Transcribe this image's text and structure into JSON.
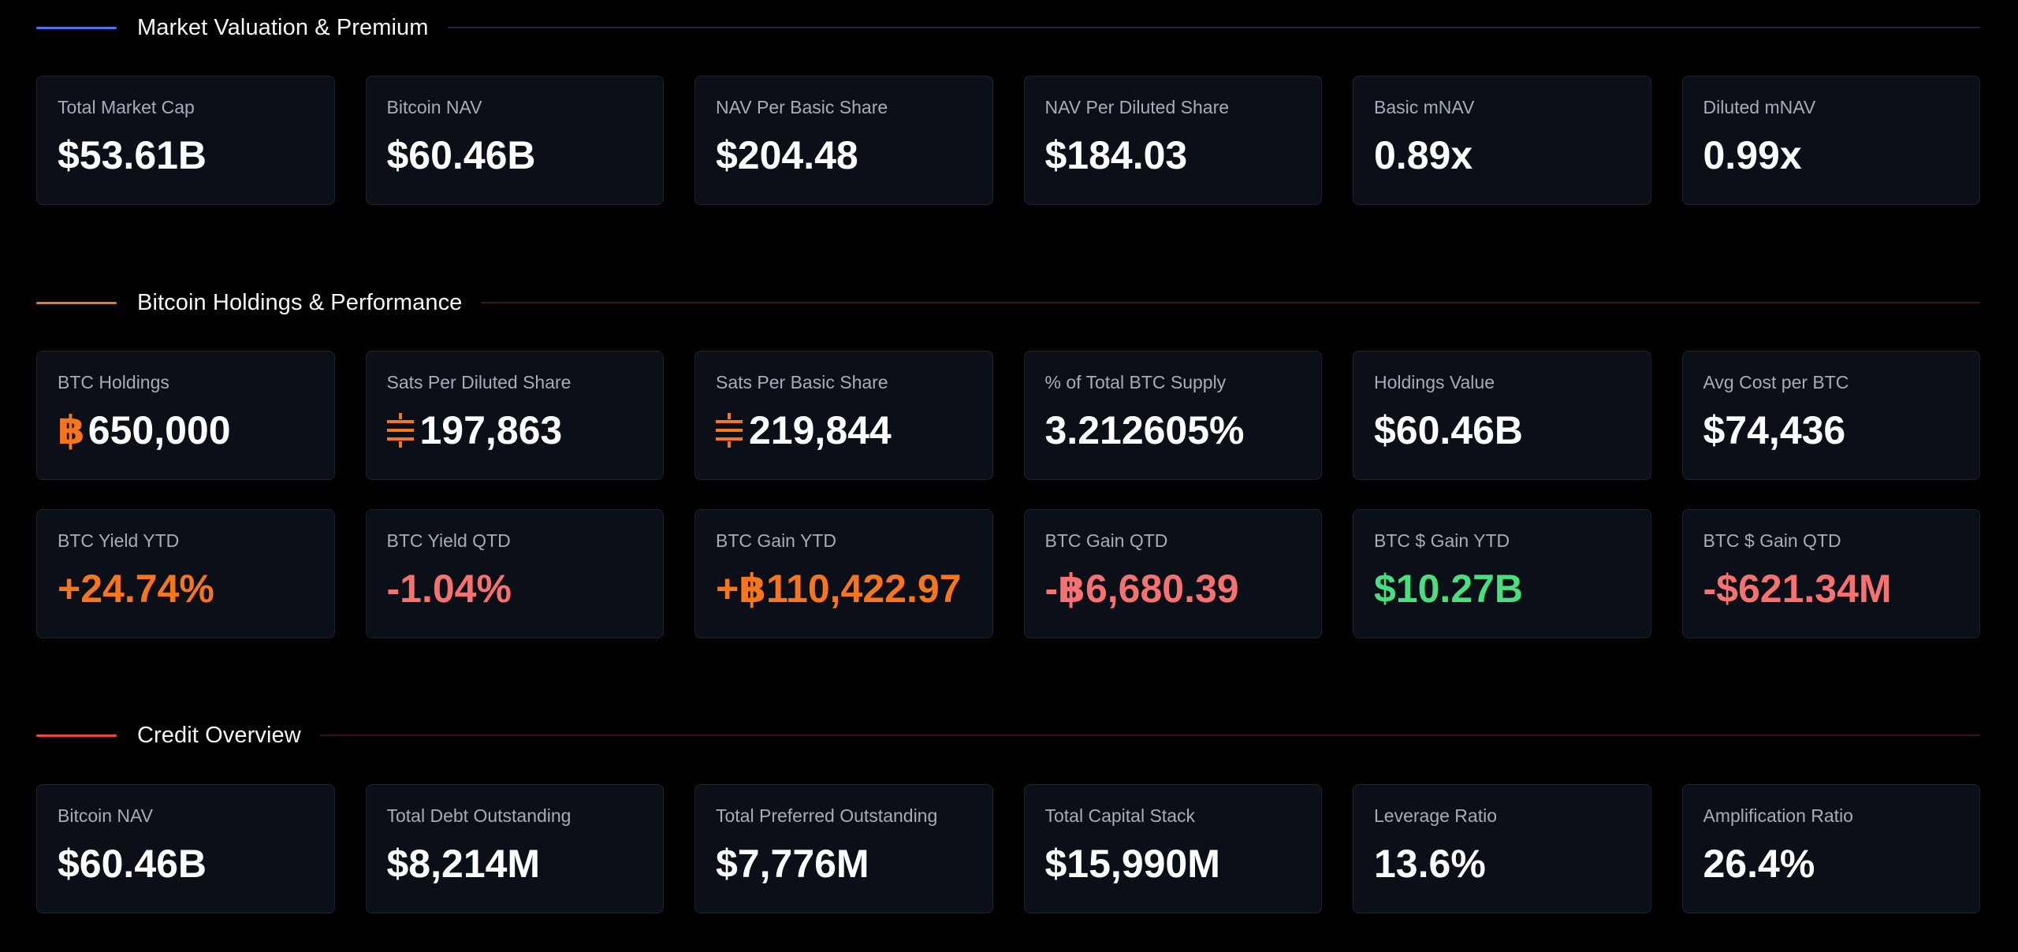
{
  "colors": {
    "valuation_accent": "#3b7cf5",
    "valuation_rule": "#17234a",
    "holdings_accent": "#f7761a",
    "holdings_rule": "#3a1d0b",
    "credit_accent": "#ef4444",
    "credit_rule": "#3a1212",
    "btc_orange": "#f7761a",
    "positive_green": "#4ade80",
    "negative_red": "#f87171"
  },
  "valuation": {
    "title": "Market Valuation & Premium",
    "cards": [
      {
        "label": "Total Market Cap",
        "value": "$53.61B"
      },
      {
        "label": "Bitcoin NAV",
        "value": "$60.46B"
      },
      {
        "label": "NAV Per Basic Share",
        "value": "$204.48"
      },
      {
        "label": "NAV Per Diluted Share",
        "value": "$184.03"
      },
      {
        "label": "Basic mNAV",
        "value": "0.89x"
      },
      {
        "label": "Diluted mNAV",
        "value": "0.99x"
      }
    ]
  },
  "holdings": {
    "title": "Bitcoin Holdings & Performance",
    "cards": [
      {
        "label": "BTC Holdings",
        "unit_icon": "bitcoin-icon",
        "unit": "฿",
        "value": "650,000"
      },
      {
        "label": "Sats Per Diluted Share",
        "unit_icon": "sats-icon",
        "value": "197,863"
      },
      {
        "label": "Sats Per Basic Share",
        "unit_icon": "sats-icon",
        "value": "219,844"
      },
      {
        "label": "% of Total BTC Supply",
        "value": "3.212605%"
      },
      {
        "label": "Holdings Value",
        "value": "$60.46B"
      },
      {
        "label": "Avg Cost per BTC",
        "value": "$74,436"
      }
    ]
  },
  "performance": {
    "cards": [
      {
        "label": "BTC Yield YTD",
        "value": "+24.74%"
      },
      {
        "label": "BTC Yield QTD",
        "value": "-1.04%"
      },
      {
        "label": "BTC Gain YTD",
        "value": "+฿110,422.97"
      },
      {
        "label": "BTC Gain QTD",
        "value": "-฿6,680.39"
      },
      {
        "label": "BTC $ Gain YTD",
        "value": "$10.27B"
      },
      {
        "label": "BTC $ Gain QTD",
        "value": "-$621.34M"
      }
    ]
  },
  "credit": {
    "title": "Credit Overview",
    "cards": [
      {
        "label": "Bitcoin NAV",
        "value": "$60.46B"
      },
      {
        "label": "Total Debt Outstanding",
        "value": "$8,214M"
      },
      {
        "label": "Total Preferred Outstanding",
        "value": "$7,776M"
      },
      {
        "label": "Total Capital Stack",
        "value": "$15,990M"
      },
      {
        "label": "Leverage Ratio",
        "value": "13.6%"
      },
      {
        "label": "Amplification Ratio",
        "value": "26.4%"
      }
    ]
  }
}
